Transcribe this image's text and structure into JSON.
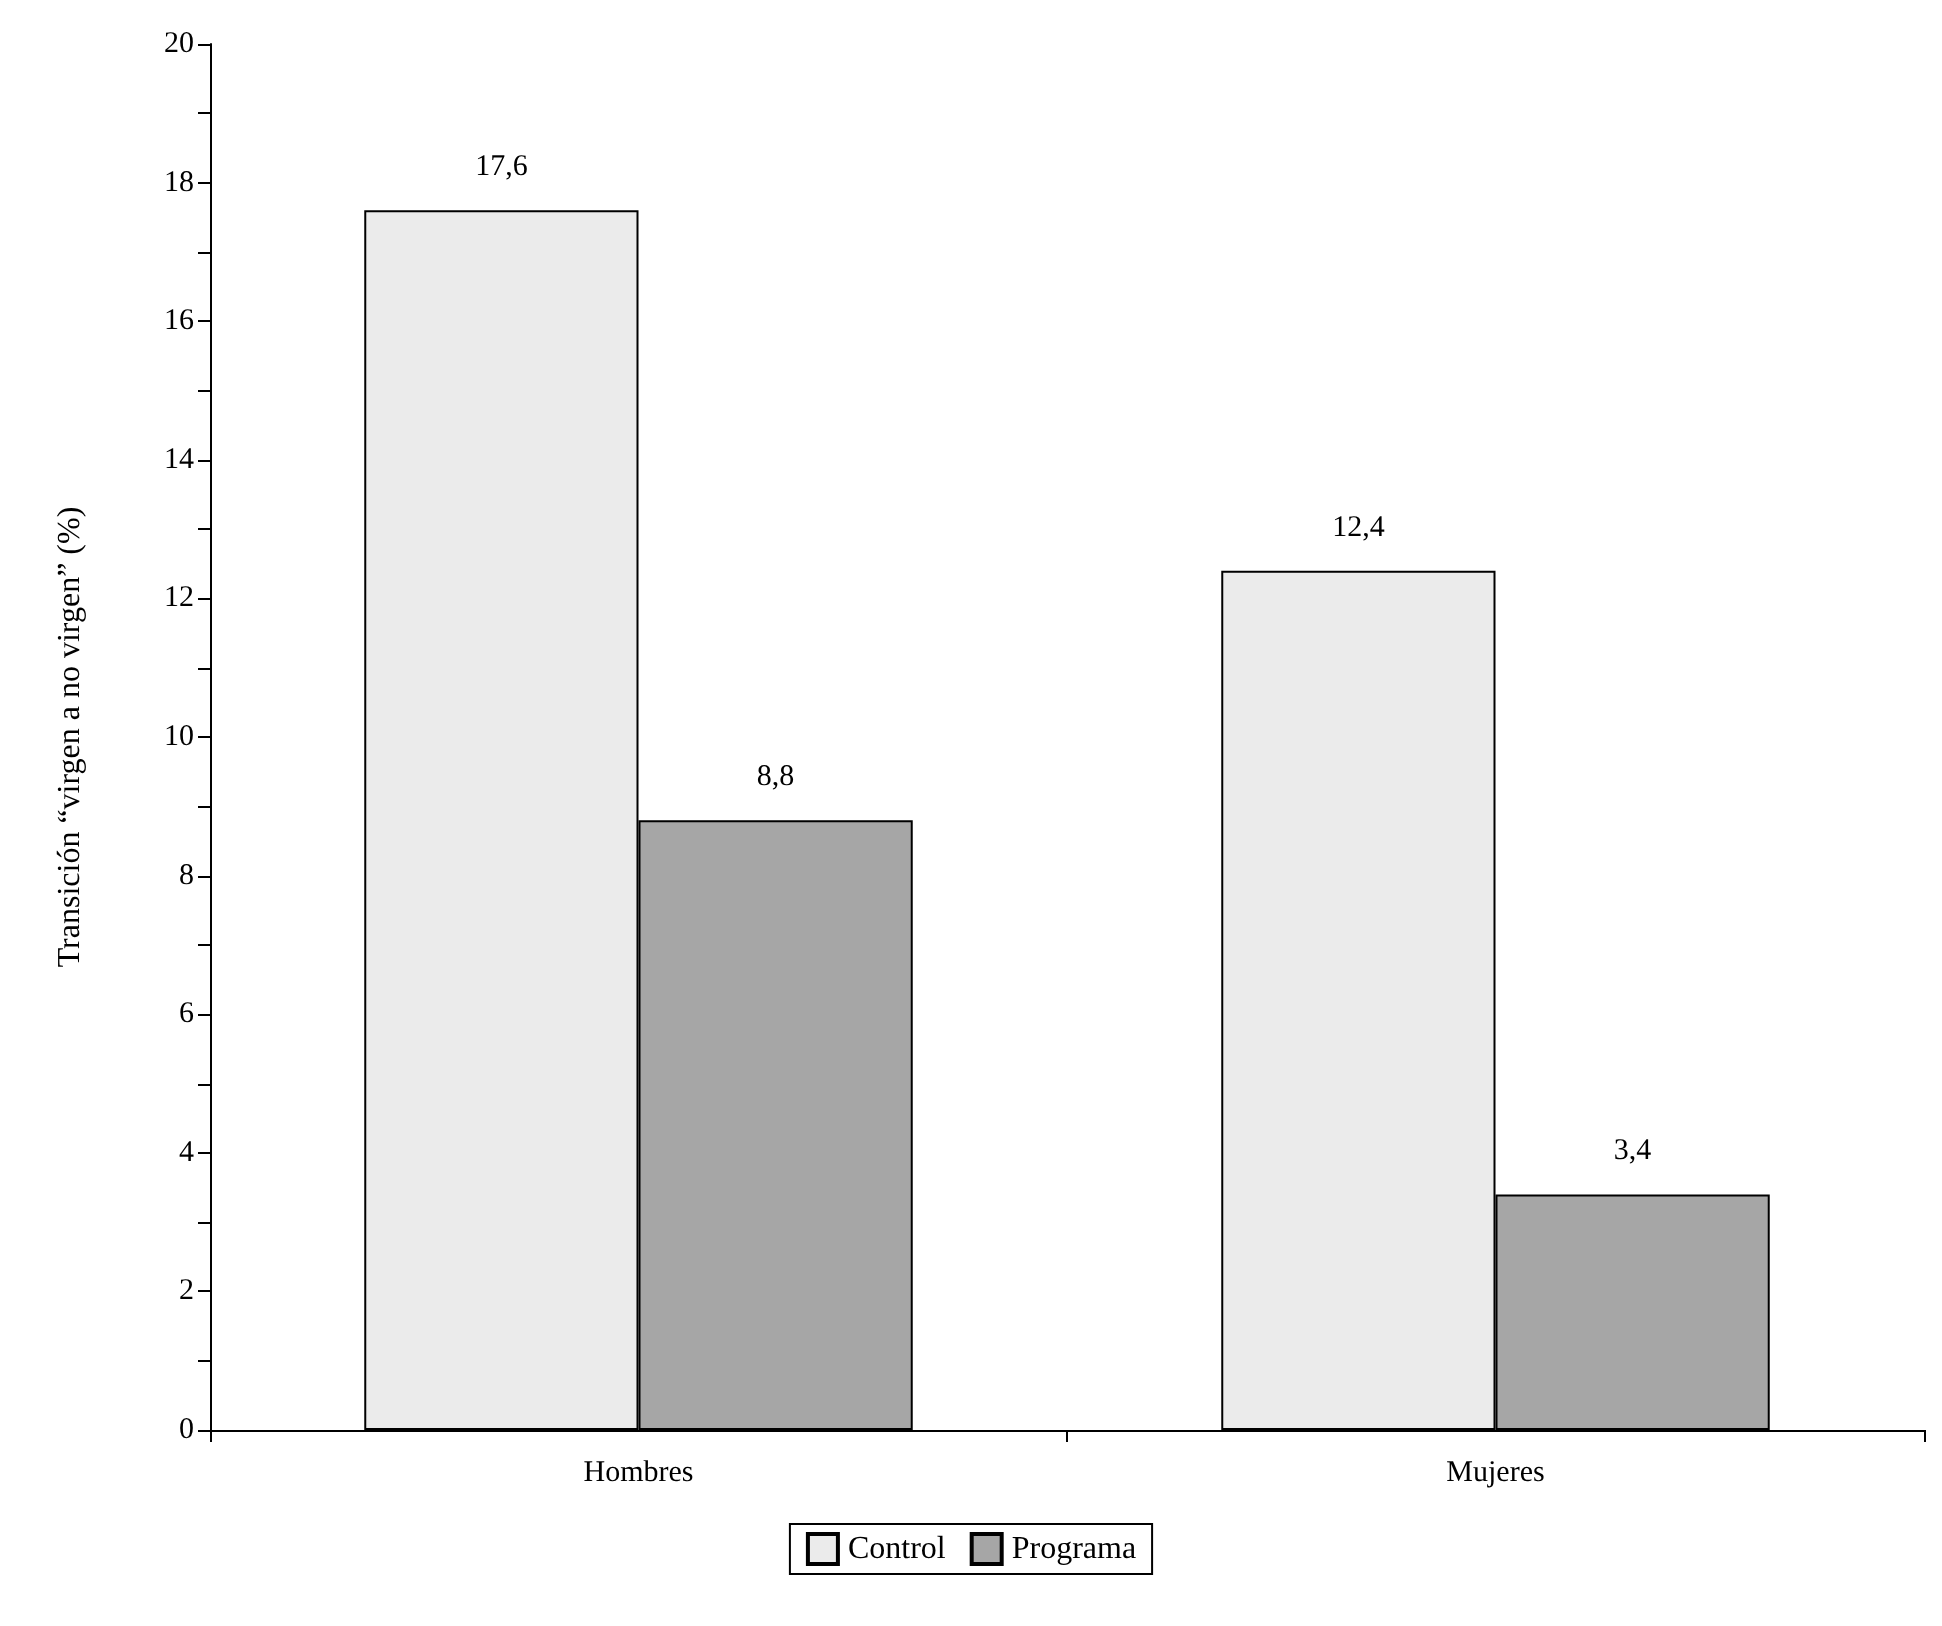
{
  "chart_data": {
    "type": "bar",
    "ylabel": "Transición “virgen a no virgen” (%)",
    "categories": [
      "Hombres",
      "Mujeres"
    ],
    "series": [
      {
        "name": "Control",
        "color": "#ebebeb",
        "values": [
          17.6,
          12.4
        ],
        "value_labels": [
          "17,6",
          "12,4"
        ]
      },
      {
        "name": "Programa",
        "color": "#a6a6a6",
        "values": [
          8.8,
          3.4
        ],
        "value_labels": [
          "8,8",
          "3,4"
        ]
      }
    ],
    "ylim": [
      0,
      20
    ],
    "yticks": [
      0,
      {
        "value": 1,
        "label": null
      },
      2,
      {
        "value": 3,
        "label": null
      },
      4,
      {
        "value": 5,
        "label": null
      },
      6,
      {
        "value": 7,
        "label": null
      },
      8,
      {
        "value": 9,
        "label": null
      },
      10,
      {
        "value": 11,
        "label": null
      },
      12,
      {
        "value": 13,
        "label": null
      },
      14,
      {
        "value": 15,
        "label": null
      },
      16,
      {
        "value": 17,
        "label": null
      },
      18,
      {
        "value": 19,
        "label": null
      },
      20
    ],
    "grid": false,
    "legend": "bottom"
  }
}
